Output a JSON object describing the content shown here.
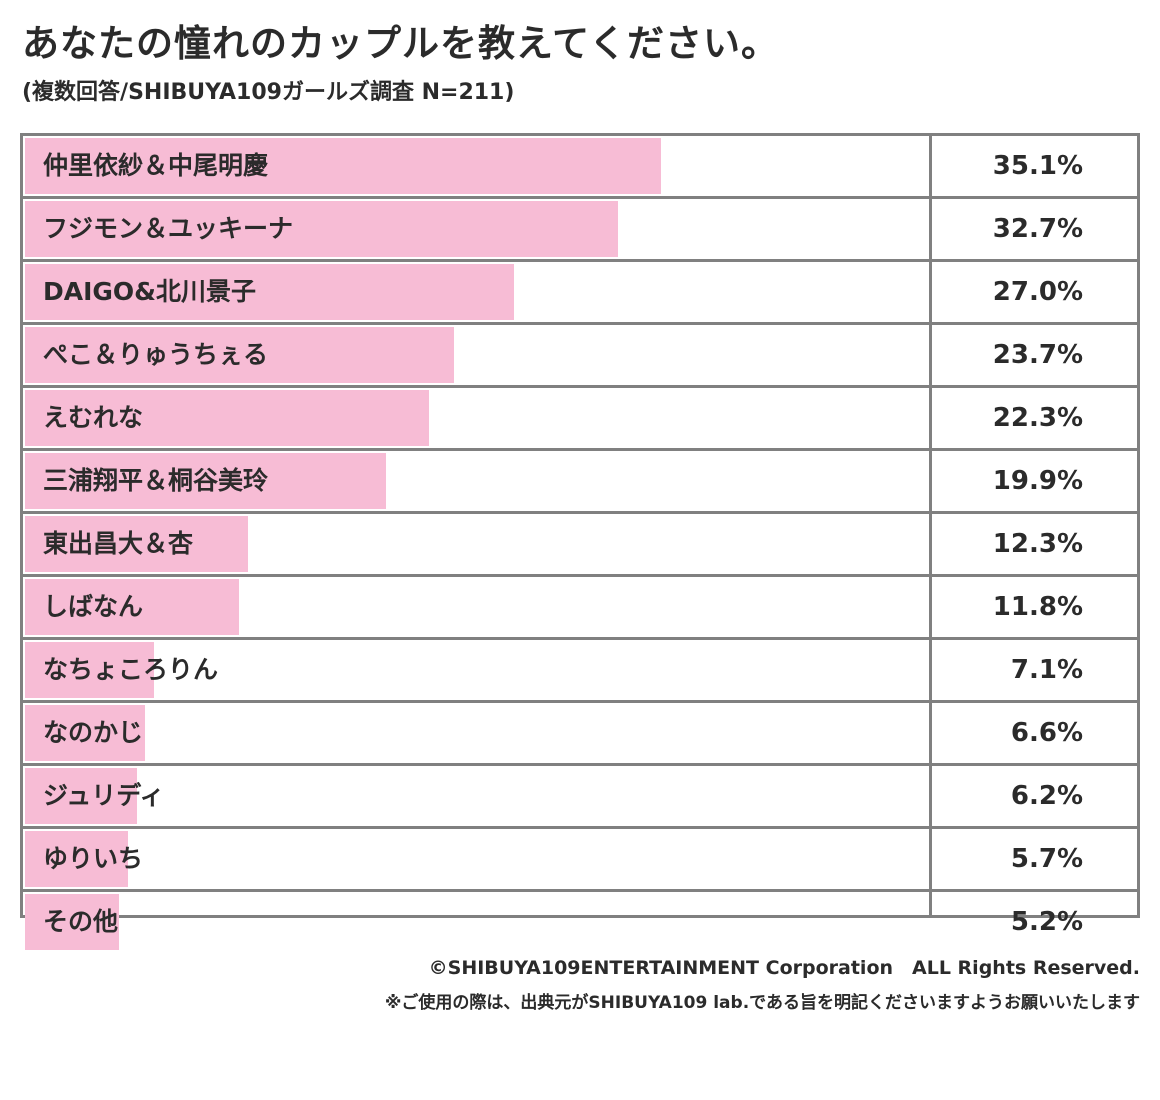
{
  "header": {
    "title": "あなたの憧れのカップルを教えてください。",
    "subtitle": "(複数回答/SHIBUYA109ガールズ調査 N=211)"
  },
  "chart_data": {
    "type": "bar",
    "orientation": "horizontal",
    "title": "あなたの憧れのカップルを教えてください。",
    "subtitle": "(複数回答/SHIBUYA109ガールズ調査 N=211)",
    "unit": "%",
    "xlim": [
      0,
      50
    ],
    "categories": [
      "仲里依紗＆中尾明慶",
      "フジモン＆ユッキーナ",
      "DAIGO&北川景子",
      "ぺこ＆りゅうちぇる",
      "えむれな",
      "三浦翔平＆桐谷美玲",
      "東出昌大＆杏",
      "しばなん",
      "なちょころりん",
      "なのかじ",
      "ジュリディ",
      "ゆりいち",
      "その他"
    ],
    "values": [
      35.1,
      32.7,
      27.0,
      23.7,
      22.3,
      19.9,
      12.3,
      11.8,
      7.1,
      6.6,
      6.2,
      5.7,
      5.2
    ],
    "value_labels": [
      "35.1%",
      "32.7%",
      "27.0%",
      "23.7%",
      "22.3%",
      "19.9%",
      "12.3%",
      "11.8%",
      "7.1%",
      "6.6%",
      "6.2%",
      "5.7%",
      "5.2%"
    ]
  },
  "colors": {
    "bar": "#f7bcd5",
    "border": "#808080",
    "text": "#2b2b2b"
  },
  "footer": {
    "copyright": "©SHIBUYA109ENTERTAINMENT Corporation　ALL Rights Reserved.",
    "notice": "※ご使用の際は、出典元がSHIBUYA109 lab.である旨を明記くださいますようお願いいたします"
  }
}
